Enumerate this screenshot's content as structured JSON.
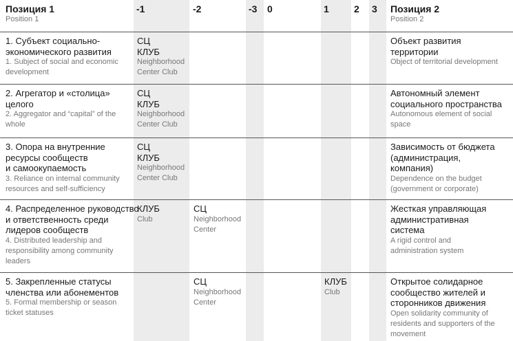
{
  "header": {
    "position1": {
      "ru": "Позиция 1",
      "en": "Position 1"
    },
    "scale": [
      "-1",
      "-2",
      "-3",
      "0",
      "1",
      "2",
      "3"
    ],
    "position2": {
      "ru": "Позиция 2",
      "en": "Position 2"
    }
  },
  "rows": [
    {
      "left": {
        "ru": [
          "1. Субъект социально-",
          "экономического развития"
        ],
        "en": [
          "1. Subject of social and economic",
          "development"
        ]
      },
      "cells": [
        {
          "ru": [
            "СЦ",
            "КЛУБ"
          ],
          "en": [
            "Neighborhood",
            "Center Club"
          ]
        },
        null,
        null,
        null,
        null,
        null,
        null
      ],
      "right": {
        "ru": [
          "Объект развития",
          "территории"
        ],
        "en": [
          "Object of territorial development"
        ]
      }
    },
    {
      "left": {
        "ru": [
          "2. Агрегатор и «столица»",
          "целого"
        ],
        "en": [
          "2. Aggregator and “capital” of the",
          "whole"
        ]
      },
      "cells": [
        {
          "ru": [
            "СЦ",
            "КЛУБ"
          ],
          "en": [
            "Neighborhood",
            "Center Club"
          ]
        },
        null,
        null,
        null,
        null,
        null,
        null
      ],
      "right": {
        "ru": [
          "Автономный элемент",
          "социального пространства"
        ],
        "en": [
          "Autonomous element of social",
          "space"
        ]
      }
    },
    {
      "left": {
        "ru": [
          "3. Опора на внутренние",
          "ресурсы сообществ",
          "и самоокупаемость"
        ],
        "en": [
          "3. Reliance on internal community",
          "resources and self-sufficiency"
        ]
      },
      "cells": [
        {
          "ru": [
            "СЦ",
            "КЛУБ"
          ],
          "en": [
            "Neighborhood",
            "Center Club"
          ]
        },
        null,
        null,
        null,
        null,
        null,
        null
      ],
      "right": {
        "ru": [
          "Зависимость от бюджета",
          "(администрация,",
          "компания)"
        ],
        "en": [
          "Dependence on the budget",
          "(government or corporate)"
        ]
      }
    },
    {
      "left": {
        "ru": [
          "4. Распределенное руководство",
          "и ответственность среди",
          "лидеров сообществ"
        ],
        "en": [
          "4. Distributed leadership and",
          "responsibility among community",
          "leaders"
        ]
      },
      "cells": [
        {
          "ru": [
            "КЛУБ"
          ],
          "en": [
            "Club"
          ]
        },
        {
          "ru": [
            "СЦ"
          ],
          "en": [
            "Neighborhood",
            "Center"
          ]
        },
        null,
        null,
        null,
        null,
        null
      ],
      "right": {
        "ru": [
          "Жесткая управляющая",
          "административная",
          "система"
        ],
        "en": [
          "A rigid control and",
          "administration system"
        ]
      }
    },
    {
      "left": {
        "ru": [
          "5. Закрепленные статусы",
          "членства или абонементов"
        ],
        "en": [
          "5. Formal membership or season",
          "ticket statuses"
        ]
      },
      "cells": [
        null,
        {
          "ru": [
            "СЦ"
          ],
          "en": [
            "Neighborhood",
            "Center"
          ]
        },
        null,
        null,
        {
          "ru": [
            "КЛУБ"
          ],
          "en": [
            "Club"
          ]
        },
        null,
        null
      ],
      "right": {
        "ru": [
          "Открытое солидарное",
          "сообщество жителей и",
          "сторонников движения"
        ],
        "en": [
          "Open solidarity community of",
          "residents and supporters of the",
          "movement"
        ]
      }
    }
  ]
}
